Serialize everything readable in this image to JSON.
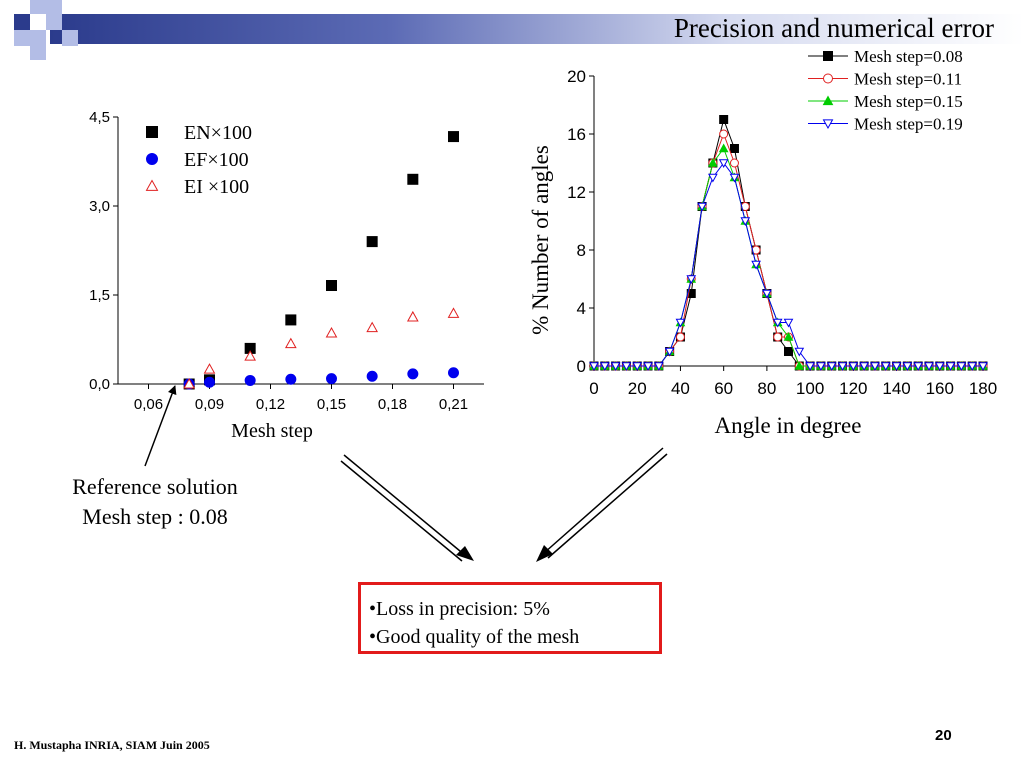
{
  "slide": {
    "title": "Precision and numerical error",
    "reference_note": [
      "Reference solution",
      "Mesh step : 0.08"
    ],
    "result_points": [
      "•Loss in precision: 5%",
      "•Good quality of the mesh"
    ],
    "footer": "H. Mustapha INRIA, SIAM Juin 2005",
    "page_number": "20",
    "colors": {
      "header_dark": "#2b3b8c",
      "header_light": "#b3bde6",
      "result_border": "#e21b1b"
    }
  },
  "chart_data": [
    {
      "type": "scatter",
      "xlabel": "Mesh step",
      "ylabel": "",
      "xlim": [
        0.045,
        0.225
      ],
      "ylim": [
        0,
        4.5
      ],
      "xticks": [
        "0,06",
        "0,09",
        "0,12",
        "0,15",
        "0,18",
        "0,21"
      ],
      "xtick_values": [
        0.06,
        0.09,
        0.12,
        0.15,
        0.18,
        0.21
      ],
      "yticks": [
        "0,0",
        "1,5",
        "3,0",
        "4,5"
      ],
      "ytick_values": [
        0,
        1.5,
        3.0,
        4.5
      ],
      "legend_position": "top-left",
      "series": [
        {
          "name": "EN×100",
          "marker": "square",
          "color": "#000000",
          "x": [
            0.08,
            0.09,
            0.11,
            0.13,
            0.15,
            0.17,
            0.19,
            0.21
          ],
          "y": [
            0.0,
            0.07,
            0.6,
            1.08,
            1.66,
            2.4,
            3.45,
            4.17
          ]
        },
        {
          "name": "EF×100",
          "marker": "circle",
          "color": "#0000ee",
          "x": [
            0.08,
            0.09,
            0.11,
            0.13,
            0.15,
            0.17,
            0.19,
            0.21
          ],
          "y": [
            0.0,
            0.03,
            0.06,
            0.08,
            0.09,
            0.13,
            0.17,
            0.19
          ]
        },
        {
          "name": "EI ×100",
          "marker": "triangle-open",
          "color": "#e02020",
          "x": [
            0.08,
            0.09,
            0.11,
            0.13,
            0.15,
            0.17,
            0.19,
            0.21
          ],
          "y": [
            0.0,
            0.25,
            0.47,
            0.68,
            0.86,
            0.95,
            1.13,
            1.19
          ]
        }
      ]
    },
    {
      "type": "line",
      "xlabel": "Angle in degree",
      "ylabel": "% Number of angles",
      "xlim": [
        0,
        180
      ],
      "ylim": [
        0,
        20
      ],
      "xticks": [
        "0",
        "20",
        "40",
        "60",
        "80",
        "100",
        "120",
        "140",
        "160",
        "180"
      ],
      "xtick_values": [
        0,
        20,
        40,
        60,
        80,
        100,
        120,
        140,
        160,
        180
      ],
      "yticks": [
        "0",
        "4",
        "8",
        "12",
        "16",
        "20"
      ],
      "ytick_values": [
        0,
        4,
        8,
        12,
        16,
        20
      ],
      "legend_position": "top-right",
      "x": [
        0,
        5,
        10,
        15,
        20,
        25,
        30,
        35,
        40,
        45,
        50,
        55,
        60,
        65,
        70,
        75,
        80,
        85,
        90,
        95,
        100,
        105,
        110,
        115,
        120,
        125,
        130,
        135,
        140,
        145,
        150,
        155,
        160,
        165,
        170,
        175,
        180
      ],
      "series": [
        {
          "name": "Mesh step=0.08",
          "marker": "square",
          "color": "#000000",
          "y": [
            0,
            0,
            0,
            0,
            0,
            0,
            0,
            1,
            2,
            5,
            11,
            14,
            17,
            15,
            11,
            8,
            5,
            2,
            1,
            0,
            0,
            0,
            0,
            0,
            0,
            0,
            0,
            0,
            0,
            0,
            0,
            0,
            0,
            0,
            0,
            0,
            0
          ]
        },
        {
          "name": "Mesh step=0.11",
          "marker": "circle-open",
          "color": "#e02020",
          "y": [
            0,
            0,
            0,
            0,
            0,
            0,
            0,
            1,
            2,
            6,
            11,
            14,
            16,
            14,
            11,
            8,
            5,
            2,
            2,
            0,
            0,
            0,
            0,
            0,
            0,
            0,
            0,
            0,
            0,
            0,
            0,
            0,
            0,
            0,
            0,
            0,
            0
          ]
        },
        {
          "name": "Mesh step=0.15",
          "marker": "triangle",
          "color": "#00cc00",
          "y": [
            0,
            0,
            0,
            0,
            0,
            0,
            0,
            1,
            3,
            6,
            11,
            14,
            15,
            13,
            10,
            7,
            5,
            3,
            2,
            0,
            0,
            0,
            0,
            0,
            0,
            0,
            0,
            0,
            0,
            0,
            0,
            0,
            0,
            0,
            0,
            0,
            0
          ]
        },
        {
          "name": "Mesh step=0.19",
          "marker": "triangle-down-open",
          "color": "#0000ee",
          "y": [
            0,
            0,
            0,
            0,
            0,
            0,
            0,
            1,
            3,
            6,
            11,
            13,
            14,
            13,
            10,
            7,
            5,
            3,
            3,
            1,
            0,
            0,
            0,
            0,
            0,
            0,
            0,
            0,
            0,
            0,
            0,
            0,
            0,
            0,
            0,
            0,
            0
          ]
        }
      ]
    }
  ]
}
